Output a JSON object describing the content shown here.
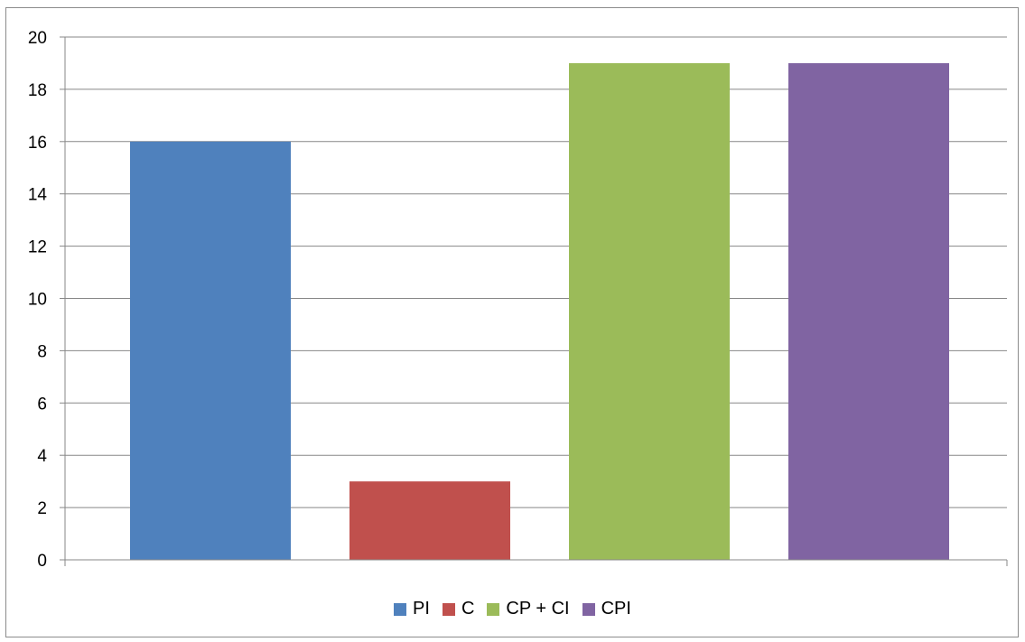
{
  "chart_data": {
    "type": "bar",
    "title": "",
    "xlabel": "",
    "ylabel": "",
    "ylim": [
      0,
      20
    ],
    "yticks": [
      0,
      2,
      4,
      6,
      8,
      10,
      12,
      14,
      16,
      18,
      20
    ],
    "grid": true,
    "legend_position": "bottom",
    "categories": [
      "PI",
      "C",
      "CP + CI",
      "CPI"
    ],
    "values": [
      16,
      3,
      19,
      19
    ],
    "colors": [
      "#4f81bd",
      "#c0504d",
      "#9bbb59",
      "#8064a2"
    ]
  }
}
